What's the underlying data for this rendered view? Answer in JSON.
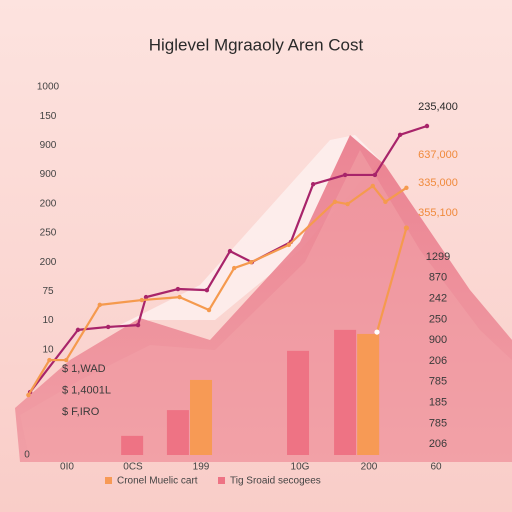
{
  "chart_data": {
    "type": "line",
    "title": "Higlevel Mgraaoly Aren Cost",
    "xlim": [
      0,
      100
    ],
    "ylim": [
      0,
      1000
    ],
    "y_axis_labels": [
      "1000",
      "150",
      "900",
      "900",
      "200",
      "250",
      "200",
      "75",
      "10",
      "10",
      "0"
    ],
    "x_axis_labels": [
      "0I0",
      "0CS",
      "199",
      "10G",
      "200",
      "60"
    ],
    "right_labels": [
      "1299",
      "870",
      "242",
      "250",
      "900",
      "206",
      "785",
      "185",
      "785",
      "206"
    ],
    "top_labels": [
      "235,400",
      "637,000",
      "335,000",
      "355,100"
    ],
    "inner_labels": [
      "$ 1,WAD",
      "$ 1,4001L",
      "$ F,IRO"
    ],
    "series": [
      {
        "type": "line",
        "color": "#a8246a",
        "x": [
          2.4,
          13.8,
          21,
          28.1,
          30,
          37.6,
          44.5,
          50,
          55.2,
          64.5,
          69.8,
          77.4,
          84.5,
          90.5,
          96.9
        ],
        "values": [
          171,
          340,
          348,
          353,
          429,
          451,
          448,
          554,
          524,
          579,
          736,
          761,
          761,
          870,
          894
        ]
      },
      {
        "type": "line",
        "color": "#f59a4e",
        "x": [
          2,
          7,
          11,
          19,
          29,
          38,
          45,
          51,
          55,
          64,
          75,
          78,
          84,
          87,
          92,
          null,
          85,
          92
        ],
        "values": [
          163,
          258,
          258,
          408,
          421,
          429,
          394,
          508,
          524,
          571,
          688,
          682,
          731,
          688,
          726,
          null,
          334,
          617
        ]
      },
      {
        "type": "bar",
        "name": "Cronel Muelic cart",
        "color": "#f79a55",
        "x": [
          43.1,
          82.9
        ],
        "values": [
          204,
          329
        ]
      },
      {
        "type": "bar",
        "name": "Tig Sroaid secogees",
        "color": "#ee7384",
        "x": [
          26.7,
          37.6,
          66.2,
          77.4
        ],
        "values": [
          52,
          122,
          283,
          340
        ]
      }
    ]
  }
}
